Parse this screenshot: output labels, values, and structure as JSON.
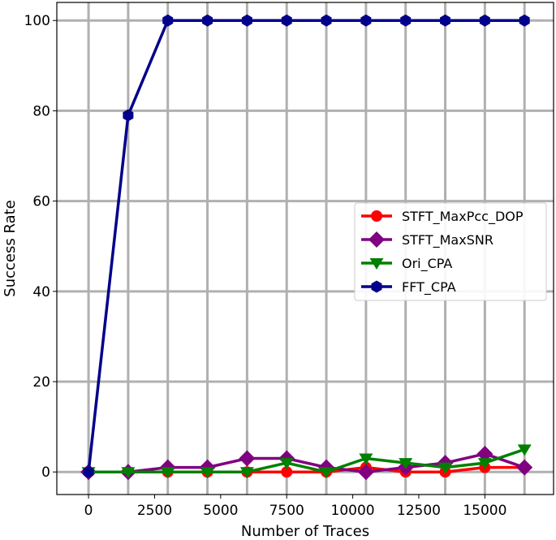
{
  "chart_data": {
    "type": "line",
    "title": "",
    "xlabel": "Number of Traces",
    "ylabel": "Success Rate",
    "xlim": [
      -1200,
      17600
    ],
    "ylim": [
      -5,
      104
    ],
    "xticks": [
      0,
      2500,
      5000,
      7500,
      10000,
      12500,
      15000
    ],
    "yticks": [
      0,
      20,
      40,
      60,
      80,
      100
    ],
    "xgrid": [
      0,
      1500,
      3000,
      4500,
      6000,
      7500,
      9000,
      10500,
      12000,
      13500,
      15000,
      16500
    ],
    "grid": true,
    "legend_position": "center-right",
    "x": [
      0,
      1500,
      3000,
      4500,
      6000,
      7500,
      9000,
      10500,
      12000,
      13500,
      15000,
      16500
    ],
    "series": [
      {
        "name": "STFT_MaxPcc_DOP",
        "color": "#ff0000",
        "marker": "circle",
        "values": [
          0,
          0,
          0,
          0,
          0,
          0,
          0,
          1,
          0,
          0,
          1,
          1
        ]
      },
      {
        "name": "STFT_MaxSNR",
        "color": "#800080",
        "marker": "diamond",
        "values": [
          0,
          0,
          1,
          1,
          3,
          3,
          1,
          0,
          1,
          2,
          4,
          1
        ]
      },
      {
        "name": "Ori_CPA",
        "color": "#008000",
        "marker": "triangle-down",
        "values": [
          0,
          0,
          0,
          0,
          0,
          2,
          0,
          3,
          2,
          1,
          2,
          5
        ]
      },
      {
        "name": "FFT_CPA",
        "color": "#00008b",
        "marker": "hexagon",
        "values": [
          0,
          79,
          100,
          100,
          100,
          100,
          100,
          100,
          100,
          100,
          100,
          100
        ]
      }
    ]
  }
}
